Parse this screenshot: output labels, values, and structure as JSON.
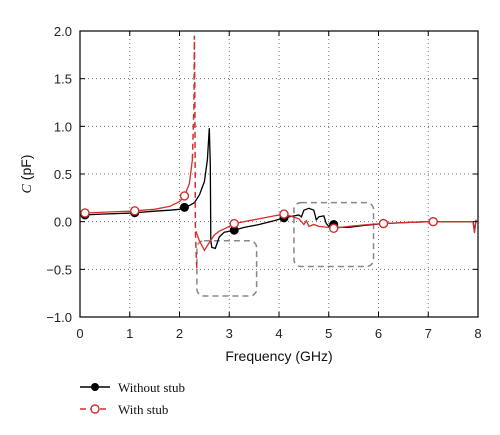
{
  "chart_data": {
    "type": "line",
    "xlabel": "Frequency (GHz)",
    "ylabel_italic": "C",
    "ylabel_unit": " (pF)",
    "xlim": [
      0,
      8
    ],
    "ylim": [
      -1.0,
      2.0
    ],
    "x_ticks": [
      "0",
      "1",
      "2",
      "3",
      "4",
      "5",
      "6",
      "7",
      "8"
    ],
    "y_ticks": [
      "2.0",
      "1.5",
      "1.0",
      "0.5",
      "0.0",
      "−0.5",
      "−1.0"
    ],
    "grid": true,
    "series": [
      {
        "name": "Without stub",
        "color": "#000000",
        "style": "solid",
        "marker": "filled-circle",
        "points": [
          [
            0.05,
            0.07
          ],
          [
            0.5,
            0.08
          ],
          [
            1.0,
            0.09
          ],
          [
            1.5,
            0.11
          ],
          [
            1.8,
            0.12
          ],
          [
            2.0,
            0.13
          ],
          [
            2.1,
            0.15
          ],
          [
            2.2,
            0.17
          ],
          [
            2.3,
            0.2
          ],
          [
            2.4,
            0.28
          ],
          [
            2.5,
            0.42
          ],
          [
            2.56,
            0.65
          ],
          [
            2.6,
            0.98
          ],
          [
            2.62,
            0.6
          ],
          [
            2.63,
            -0.2
          ],
          [
            2.65,
            -0.27
          ],
          [
            2.72,
            -0.28
          ],
          [
            2.8,
            -0.16
          ],
          [
            2.9,
            -0.11
          ],
          [
            3.0,
            -0.1
          ],
          [
            3.1,
            -0.09
          ],
          [
            3.3,
            -0.06
          ],
          [
            3.6,
            -0.03
          ],
          [
            3.9,
            0.01
          ],
          [
            4.1,
            0.04
          ],
          [
            4.3,
            0.06
          ],
          [
            4.4,
            0.07
          ],
          [
            4.45,
            0.05
          ],
          [
            4.5,
            0.12
          ],
          [
            4.6,
            0.14
          ],
          [
            4.7,
            0.12
          ],
          [
            4.75,
            0.02
          ],
          [
            4.8,
            0.05
          ],
          [
            4.9,
            0.06
          ],
          [
            4.95,
            -0.02
          ],
          [
            5.0,
            -0.05
          ],
          [
            5.05,
            -0.01
          ],
          [
            5.1,
            -0.03
          ],
          [
            5.2,
            -0.06
          ],
          [
            5.4,
            -0.06
          ],
          [
            5.7,
            -0.04
          ],
          [
            6.1,
            -0.02
          ],
          [
            6.5,
            -0.01
          ],
          [
            7.0,
            0.0
          ],
          [
            7.5,
            0.0
          ],
          [
            7.9,
            0.0
          ],
          [
            7.93,
            -0.1
          ],
          [
            7.96,
            0.02
          ]
        ],
        "markers_x": [
          0.1,
          1.1,
          2.1,
          3.1,
          4.1,
          5.1,
          6.1,
          7.1
        ]
      },
      {
        "name": "With stub",
        "color": "#d32f2f",
        "style": "solid-with-dashed-divergence",
        "marker": "open-circle",
        "points": [
          [
            0.05,
            0.09
          ],
          [
            0.5,
            0.1
          ],
          [
            1.0,
            0.11
          ],
          [
            1.5,
            0.13
          ],
          [
            1.8,
            0.16
          ],
          [
            2.0,
            0.21
          ],
          [
            2.1,
            0.27
          ],
          [
            2.2,
            0.4
          ],
          [
            2.26,
            0.65
          ]
        ],
        "dashed_points": [
          [
            2.26,
            0.65
          ],
          [
            2.29,
            1.2
          ],
          [
            2.3,
            1.95
          ],
          [
            2.31,
            1.2
          ],
          [
            2.32,
            -0.1
          ],
          [
            2.34,
            -0.4
          ],
          [
            2.35,
            -0.5
          ]
        ],
        "points_after": [
          [
            2.33,
            -0.1
          ],
          [
            2.4,
            -0.2
          ],
          [
            2.5,
            -0.3
          ],
          [
            2.6,
            -0.22
          ],
          [
            2.7,
            -0.14
          ],
          [
            2.8,
            -0.1
          ],
          [
            3.0,
            -0.05
          ],
          [
            3.1,
            -0.02
          ],
          [
            3.4,
            0.01
          ],
          [
            3.8,
            0.05
          ],
          [
            4.1,
            0.08
          ],
          [
            4.4,
            0.03
          ],
          [
            4.5,
            -0.03
          ],
          [
            4.55,
            0.01
          ],
          [
            4.6,
            -0.05
          ],
          [
            4.7,
            -0.03
          ],
          [
            4.8,
            -0.05
          ],
          [
            5.0,
            -0.06
          ],
          [
            5.1,
            -0.07
          ],
          [
            5.4,
            -0.05
          ],
          [
            5.8,
            -0.03
          ],
          [
            6.1,
            -0.02
          ],
          [
            6.5,
            -0.01
          ],
          [
            7.0,
            0.0
          ],
          [
            7.5,
            0.0
          ],
          [
            7.9,
            0.0
          ],
          [
            7.93,
            -0.12
          ],
          [
            7.96,
            0.02
          ]
        ],
        "markers_x": [
          0.1,
          1.1,
          2.1,
          3.1,
          4.1,
          5.1,
          6.1,
          7.1
        ]
      }
    ],
    "annotation_boxes": [
      {
        "x0": 2.35,
        "x1": 3.55,
        "y0": -0.78,
        "y1": -0.2
      },
      {
        "x0": 4.3,
        "x1": 5.9,
        "y0": -0.47,
        "y1": 0.2
      }
    ],
    "legend": {
      "placement": "bottom-left"
    }
  }
}
